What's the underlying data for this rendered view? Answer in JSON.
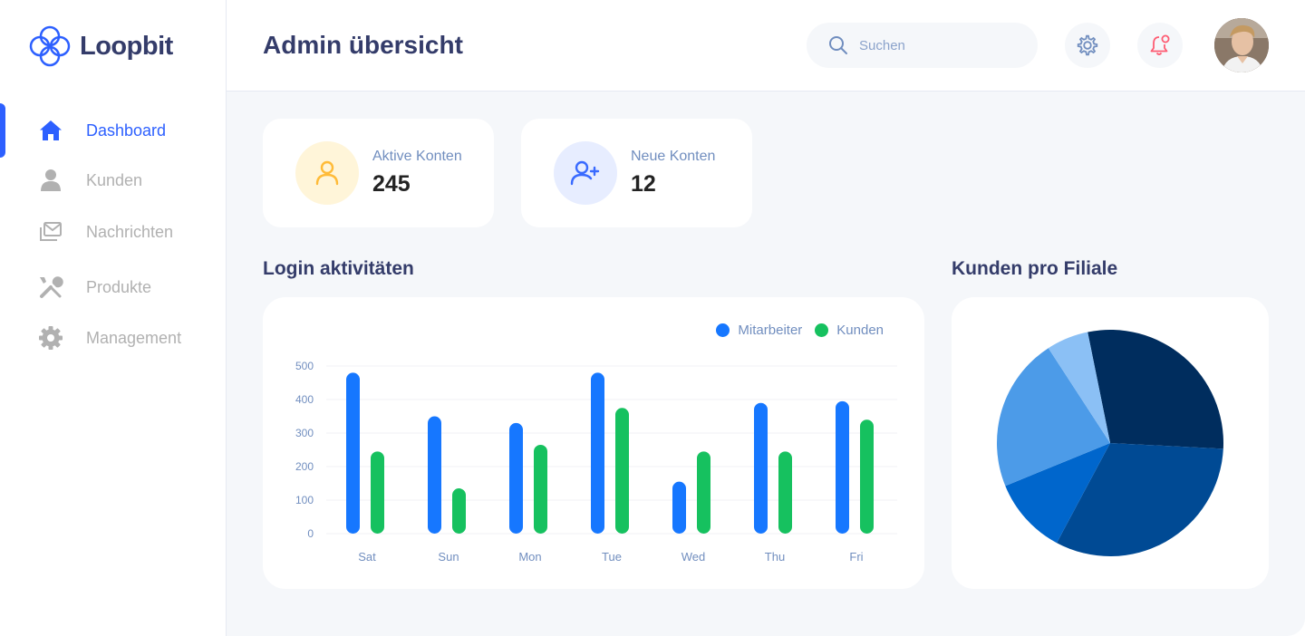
{
  "app": {
    "name": "Loopbit"
  },
  "sidebar": {
    "items": [
      {
        "label": "Dashboard",
        "icon": "home-icon",
        "active": true
      },
      {
        "label": "Kunden",
        "icon": "user-icon",
        "active": false
      },
      {
        "label": "Nachrichten",
        "icon": "messages-icon",
        "active": false
      },
      {
        "label": "Produkte",
        "icon": "tools-icon",
        "active": false
      },
      {
        "label": "Management",
        "icon": "gear-icon",
        "active": false
      }
    ]
  },
  "header": {
    "title": "Admin übersicht",
    "search_placeholder": "Suchen"
  },
  "stats": [
    {
      "label": "Aktive Konten",
      "value": "245",
      "icon": "user-icon",
      "color": "#FFBB38"
    },
    {
      "label": "Neue Konten",
      "value": "12",
      "icon": "user-add-icon",
      "color": "#396AFF"
    }
  ],
  "sections": {
    "login_title": "Login aktivitäten",
    "branch_title": "Kunden pro Filiale"
  },
  "colors": {
    "accent": "#2D60FF",
    "series_blue": "#1677FF",
    "series_green": "#16C15F"
  },
  "chart_data": [
    {
      "type": "bar",
      "title": "Login aktivitäten",
      "categories": [
        "Sat",
        "Sun",
        "Mon",
        "Tue",
        "Wed",
        "Thu",
        "Fri"
      ],
      "series": [
        {
          "name": "Mitarbeiter",
          "color": "#1677FF",
          "values": [
            480,
            350,
            330,
            480,
            155,
            390,
            395
          ]
        },
        {
          "name": "Kunden",
          "color": "#16C15F",
          "values": [
            245,
            135,
            265,
            375,
            245,
            245,
            340
          ]
        }
      ],
      "ylim": [
        0,
        500
      ],
      "yticks": [
        0,
        100,
        200,
        300,
        400,
        500
      ],
      "grid": true,
      "legend": "top-right"
    },
    {
      "type": "pie",
      "title": "Kunden pro Filiale",
      "slices": [
        {
          "value": 29,
          "color": "#002D5E"
        },
        {
          "value": 32,
          "color": "#004A94"
        },
        {
          "value": 11,
          "color": "#0066CC"
        },
        {
          "value": 22,
          "color": "#4C9BE8"
        },
        {
          "value": 6,
          "color": "#8BC0F5"
        }
      ]
    }
  ]
}
